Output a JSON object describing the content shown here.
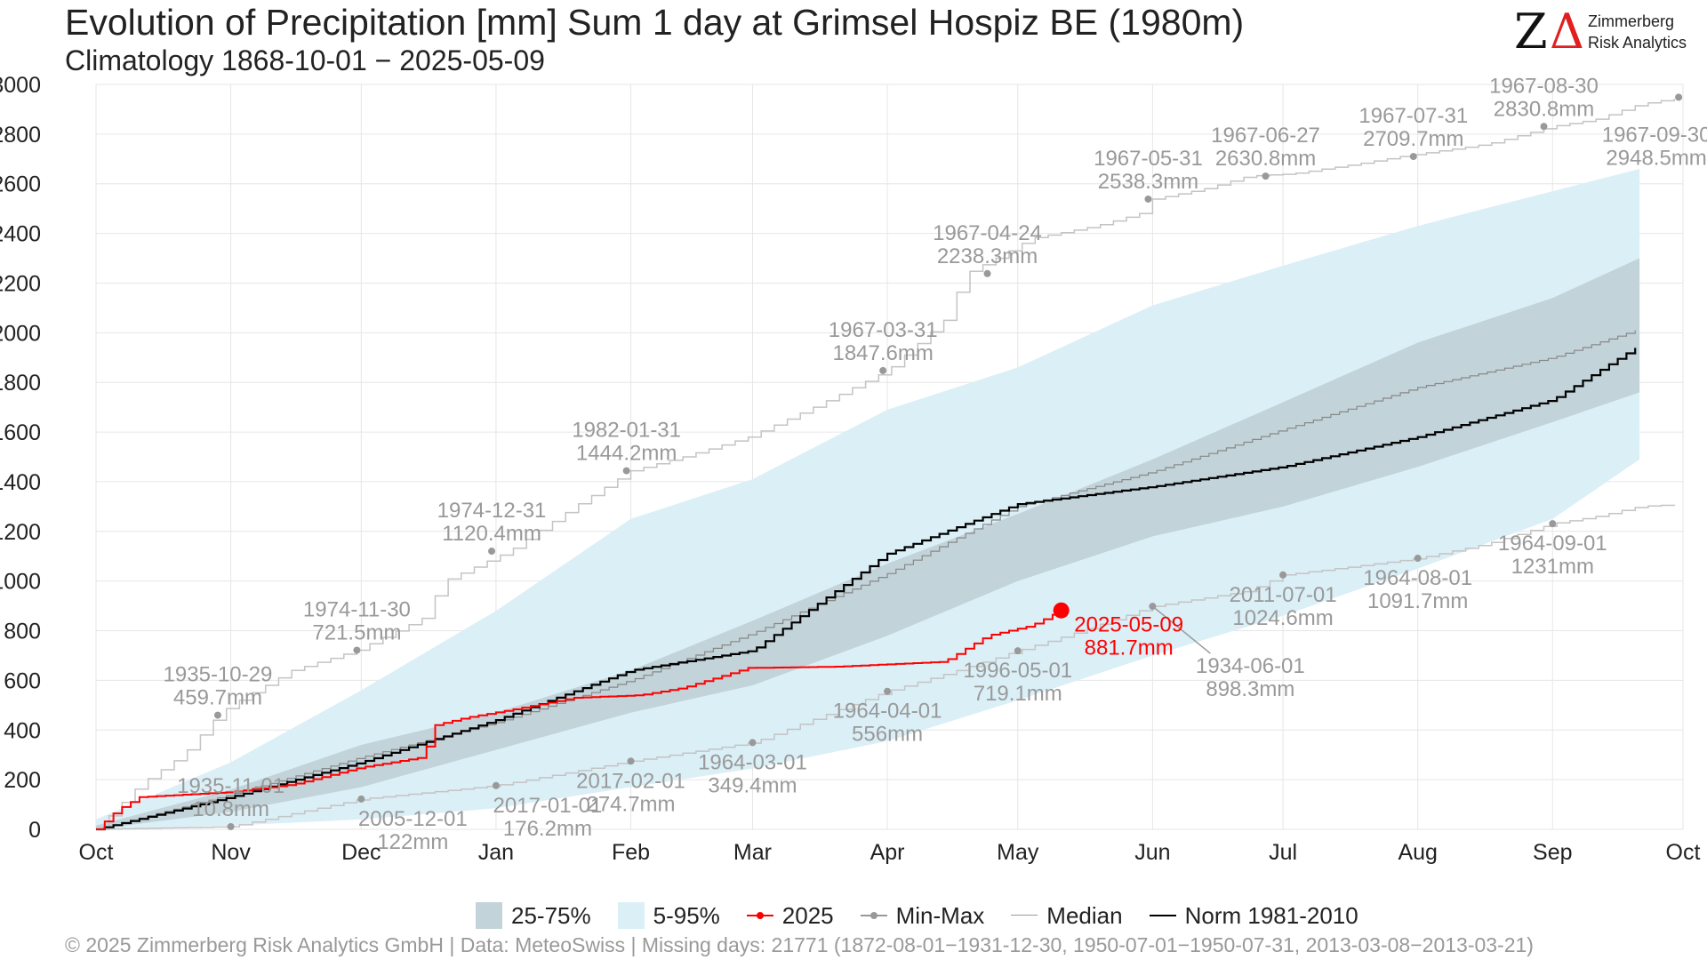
{
  "header": {
    "title": "Evolution of Precipitation [mm] Sum 1 day at Grimsel Hospiz  BE (1980m)",
    "subtitle": "Climatology 1868-10-01 − 2025-05-09"
  },
  "logo": {
    "mark_z": "Z",
    "mark_delta": "Δ",
    "line1": "Zimmerberg",
    "line2": "Risk Analytics"
  },
  "footer": {
    "text": "©  2025 Zimmerberg Risk Analytics GmbH | Data: MeteoSwiss | Missing days: 21771 (1872-08-01−1931-12-30, 1950-07-01−1950-07-31, 2013-03-08−2013-03-21)"
  },
  "colors": {
    "band_25_75": "#c2d3d9",
    "band_5_95": "#dbeff7",
    "year_2025": "#ff0000",
    "minmax": "#999999",
    "median": "#888888",
    "norm": "#000000",
    "grid": "#e6e6e6",
    "label_gray": "#999999"
  },
  "chart_data": {
    "type": "line",
    "x_axis": {
      "range_days": [
        0,
        365
      ],
      "ticks": [
        {
          "label": "Oct",
          "day": 0
        },
        {
          "label": "Nov",
          "day": 31
        },
        {
          "label": "Dec",
          "day": 61
        },
        {
          "label": "Jan",
          "day": 92
        },
        {
          "label": "Feb",
          "day": 123
        },
        {
          "label": "Mar",
          "day": 151
        },
        {
          "label": "Apr",
          "day": 182
        },
        {
          "label": "May",
          "day": 212
        },
        {
          "label": "Jun",
          "day": 243
        },
        {
          "label": "Jul",
          "day": 273
        },
        {
          "label": "Aug",
          "day": 304
        },
        {
          "label": "Sep",
          "day": 335
        },
        {
          "label": "Oct",
          "day": 365
        }
      ]
    },
    "y_axis": {
      "range": [
        0,
        3000
      ],
      "ticks": [
        0,
        200,
        400,
        600,
        800,
        1000,
        1200,
        1400,
        1600,
        1800,
        2000,
        2200,
        2400,
        2600,
        2800,
        3000
      ]
    },
    "grid": true,
    "legend_position": "bottom",
    "legend": [
      {
        "key": "band_25_75",
        "label": "25-75%"
      },
      {
        "key": "band_5_95",
        "label": "5-95%"
      },
      {
        "key": "year_2025",
        "label": "2025"
      },
      {
        "key": "minmax",
        "label": "Min-Max"
      },
      {
        "key": "median",
        "label": "Median"
      },
      {
        "key": "norm",
        "label": "Norm 1981-2010"
      }
    ],
    "band_5_95": {
      "x": [
        0,
        31,
        61,
        92,
        123,
        151,
        182,
        212,
        243,
        273,
        304,
        335,
        355
      ],
      "lower": [
        0,
        15,
        40,
        85,
        170,
        245,
        355,
        520,
        700,
        860,
        1050,
        1250,
        1490
      ],
      "upper": [
        40,
        270,
        560,
        880,
        1250,
        1410,
        1690,
        1860,
        2110,
        2270,
        2430,
        2570,
        2660
      ]
    },
    "band_25_75": {
      "x": [
        0,
        31,
        61,
        92,
        123,
        151,
        182,
        212,
        243,
        273,
        304,
        335,
        355
      ],
      "lower": [
        0,
        70,
        170,
        320,
        470,
        580,
        780,
        1000,
        1180,
        1300,
        1460,
        1640,
        1760
      ],
      "upper": [
        15,
        160,
        340,
        470,
        640,
        840,
        1070,
        1270,
        1490,
        1720,
        1960,
        2140,
        2300
      ]
    },
    "median": {
      "x": [
        0,
        31,
        61,
        92,
        123,
        151,
        182,
        212,
        243,
        273,
        304,
        335,
        355
      ],
      "y": [
        0,
        140,
        290,
        430,
        600,
        790,
        1030,
        1300,
        1440,
        1610,
        1780,
        1900,
        2015
      ]
    },
    "norm": {
      "x": [
        0,
        31,
        61,
        92,
        123,
        151,
        182,
        212,
        243,
        273,
        304,
        335,
        355
      ],
      "y": [
        0,
        130,
        270,
        440,
        640,
        720,
        1110,
        1310,
        1380,
        1460,
        1580,
        1730,
        1950
      ]
    },
    "year_2025": {
      "x": [
        0,
        5,
        10,
        31,
        45,
        61,
        75,
        78,
        85,
        95,
        110,
        125,
        135,
        150,
        170,
        195,
        205,
        215,
        222
      ],
      "y": [
        0,
        80,
        130,
        150,
        180,
        250,
        290,
        420,
        450,
        480,
        530,
        540,
        570,
        650,
        655,
        675,
        780,
        820,
        881.7
      ],
      "endpoint": {
        "day": 222,
        "value": 881.7,
        "date": "2025-05-09",
        "value_label": "881.7mm"
      }
    },
    "max_line": {
      "x": [
        0,
        10,
        20,
        28,
        31,
        45,
        60,
        75,
        80,
        95,
        110,
        123,
        135,
        150,
        165,
        182,
        195,
        200,
        207,
        215,
        230,
        240,
        243,
        255,
        265,
        275,
        290,
        300,
        320,
        335,
        345,
        355,
        365
      ],
      "y": [
        0,
        180,
        300,
        459.7,
        500,
        640,
        721.5,
        850,
        1000,
        1120.4,
        1300,
        1444.2,
        1500,
        1580,
        1700,
        1847.6,
        2050,
        2238.3,
        2300,
        2380,
        2430,
        2480,
        2538.3,
        2580,
        2630.8,
        2640,
        2680,
        2709.7,
        2760,
        2830.8,
        2860,
        2920,
        2948.5
      ]
    },
    "min_line": {
      "x": [
        0,
        31,
        61,
        92,
        123,
        151,
        182,
        200,
        212,
        225,
        243,
        265,
        273,
        290,
        304,
        320,
        335,
        345,
        355,
        365
      ],
      "y": [
        0,
        10.8,
        122,
        176.2,
        274.7,
        349.4,
        556,
        650,
        719.1,
        790,
        898.3,
        960,
        1024.6,
        1060,
        1091.7,
        1150,
        1231,
        1260,
        1300,
        1310
      ]
    },
    "annotations": [
      {
        "id": "max-1935-10-29",
        "day": 28,
        "value": 459.7,
        "date": "1935-10-29",
        "value_label": "459.7mm",
        "series": "max",
        "anchor": "above"
      },
      {
        "id": "max-1974-11-30",
        "day": 60,
        "value": 721.5,
        "date": "1974-11-30",
        "value_label": "721.5mm",
        "series": "max",
        "anchor": "above"
      },
      {
        "id": "max-1974-12-31",
        "day": 91,
        "value": 1120.4,
        "date": "1974-12-31",
        "value_label": "1120.4mm",
        "series": "max",
        "anchor": "above"
      },
      {
        "id": "max-1982-01-31",
        "day": 122,
        "value": 1444.2,
        "date": "1982-01-31",
        "value_label": "1444.2mm",
        "series": "max",
        "anchor": "above"
      },
      {
        "id": "max-1967-03-31",
        "day": 181,
        "value": 1847.6,
        "date": "1967-03-31",
        "value_label": "1847.6mm",
        "series": "max",
        "anchor": "above"
      },
      {
        "id": "max-1967-04-24",
        "day": 205,
        "value": 2238.3,
        "date": "1967-04-24",
        "value_label": "2238.3mm",
        "series": "max",
        "anchor": "above"
      },
      {
        "id": "max-1967-05-31",
        "day": 242,
        "value": 2538.3,
        "date": "1967-05-31",
        "value_label": "2538.3mm",
        "series": "max",
        "anchor": "above"
      },
      {
        "id": "max-1967-06-27",
        "day": 269,
        "value": 2630.8,
        "date": "1967-06-27",
        "value_label": "2630.8mm",
        "series": "max",
        "anchor": "above"
      },
      {
        "id": "max-1967-07-31",
        "day": 303,
        "value": 2709.7,
        "date": "1967-07-31",
        "value_label": "2709.7mm",
        "series": "max",
        "anchor": "above"
      },
      {
        "id": "max-1967-08-30",
        "day": 333,
        "value": 2830.8,
        "date": "1967-08-30",
        "value_label": "2830.8mm",
        "series": "max",
        "anchor": "above"
      },
      {
        "id": "max-1967-09-30",
        "day": 364,
        "value": 2948.5,
        "date": "1967-09-30",
        "value_label": "2948.5mm",
        "series": "max",
        "anchor": "below-left"
      },
      {
        "id": "min-1935-11-01",
        "day": 31,
        "value": 10.8,
        "date": "1935-11-01",
        "value_label": "10.8mm",
        "series": "min",
        "anchor": "above"
      },
      {
        "id": "min-2005-12-01",
        "day": 61,
        "value": 122,
        "date": "2005-12-01",
        "value_label": "122mm",
        "series": "min",
        "anchor": "below-right"
      },
      {
        "id": "min-2017-01-01",
        "day": 92,
        "value": 176.2,
        "date": "2017-01-01",
        "value_label": "176.2mm",
        "series": "min",
        "anchor": "below-right"
      },
      {
        "id": "min-2017-02-01",
        "day": 123,
        "value": 274.7,
        "date": "2017-02-01",
        "value_label": "274.7mm",
        "series": "min",
        "anchor": "below"
      },
      {
        "id": "min-1964-03-01",
        "day": 151,
        "value": 349.4,
        "date": "1964-03-01",
        "value_label": "349.4mm",
        "series": "min",
        "anchor": "below"
      },
      {
        "id": "min-1964-04-01",
        "day": 182,
        "value": 556,
        "date": "1964-04-01",
        "value_label": "556mm",
        "series": "min",
        "anchor": "below"
      },
      {
        "id": "min-1996-05-01",
        "day": 212,
        "value": 719.1,
        "date": "1996-05-01",
        "value_label": "719.1mm",
        "series": "min",
        "anchor": "below"
      },
      {
        "id": "min-1934-06-01",
        "day": 243,
        "value": 898.3,
        "date": "1934-06-01",
        "value_label": "898.3mm",
        "series": "min",
        "anchor": "leader"
      },
      {
        "id": "min-2011-07-01",
        "day": 273,
        "value": 1024.6,
        "date": "2011-07-01",
        "value_label": "1024.6mm",
        "series": "min",
        "anchor": "below"
      },
      {
        "id": "min-1964-08-01",
        "day": 304,
        "value": 1091.7,
        "date": "1964-08-01",
        "value_label": "1091.7mm",
        "series": "min",
        "anchor": "below"
      },
      {
        "id": "min-1964-09-01",
        "day": 335,
        "value": 1231,
        "date": "1964-09-01",
        "value_label": "1231mm",
        "series": "min",
        "anchor": "below"
      }
    ]
  }
}
